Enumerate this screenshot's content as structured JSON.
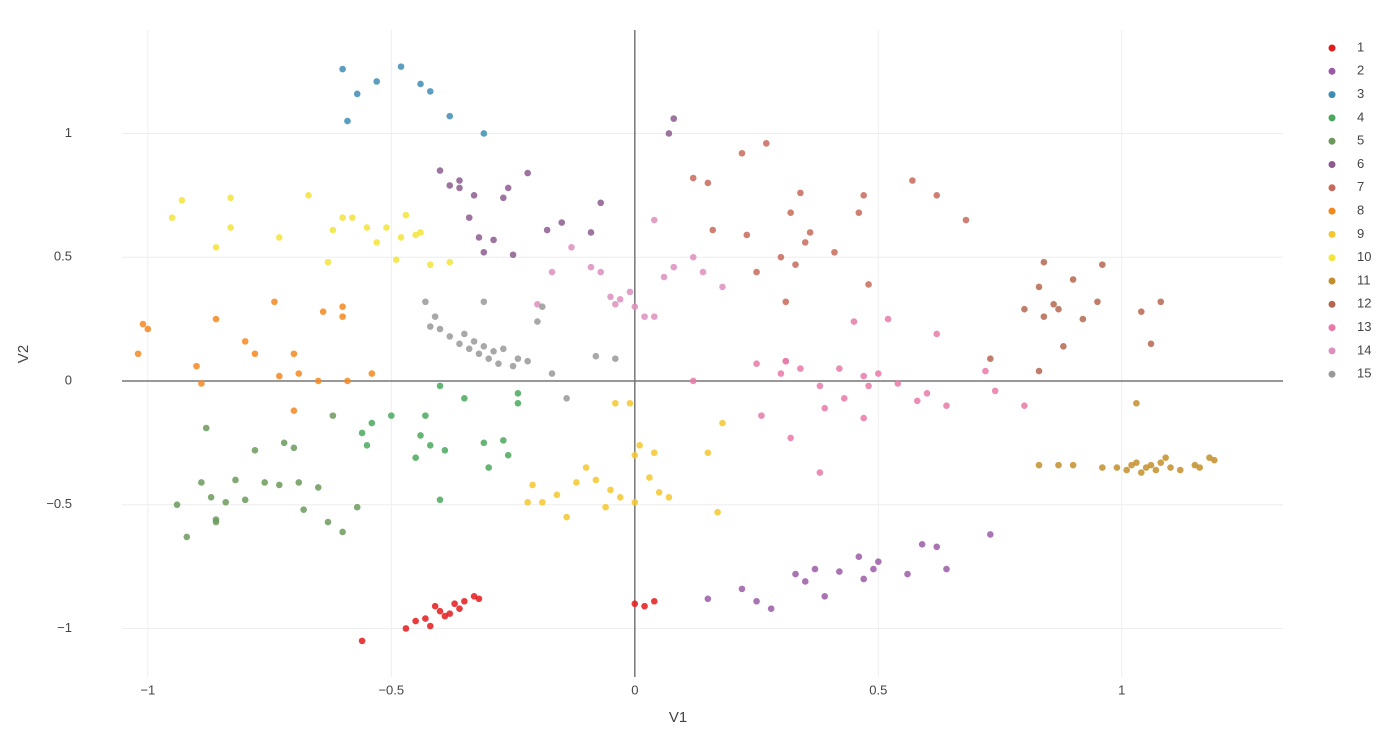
{
  "chart_data": {
    "type": "scatter",
    "x_label": "V1",
    "y_label": "V2",
    "xlim": [
      -1.053,
      1.331
    ],
    "ylim": [
      -1.196,
      1.418
    ],
    "xticks": [
      {
        "value": -1,
        "label": "−1"
      },
      {
        "value": -0.5,
        "label": "−0.5"
      },
      0,
      0.5,
      1
    ],
    "yticks": [
      {
        "value": -1,
        "label": "−1"
      },
      {
        "value": -0.5,
        "label": "−0.5"
      },
      0,
      0.5,
      1
    ],
    "grid": true,
    "legend": "right",
    "series": [
      {
        "name": "1",
        "color": "#e41a1c",
        "x": [
          -0.56,
          -0.47,
          -0.45,
          -0.43,
          -0.42,
          -0.4,
          -0.39,
          -0.37,
          -0.36,
          -0.35,
          -0.33,
          -0.32,
          -0.38,
          -0.41,
          0,
          0.02,
          0.04
        ],
        "values": [
          -1.05,
          -1,
          -0.97,
          -0.96,
          -0.99,
          -0.93,
          -0.95,
          -0.9,
          -0.92,
          -0.89,
          -0.87,
          -0.88,
          -0.94,
          -0.91,
          -0.9,
          -0.91,
          -0.89
        ]
      },
      {
        "name": "2",
        "color": "#9b5aa6",
        "x": [
          0.15,
          0.22,
          0.25,
          0.28,
          0.33,
          0.35,
          0.37,
          0.39,
          0.42,
          0.46,
          0.47,
          0.49,
          0.5,
          0.56,
          0.59,
          0.62,
          0.64,
          0.73
        ],
        "values": [
          -0.88,
          -0.84,
          -0.89,
          -0.92,
          -0.78,
          -0.81,
          -0.76,
          -0.87,
          -0.77,
          -0.71,
          -0.8,
          -0.76,
          -0.73,
          -0.78,
          -0.66,
          -0.67,
          -0.76,
          -0.62
        ]
      },
      {
        "name": "3",
        "color": "#3f8db5",
        "x": [
          -0.6,
          -0.59,
          -0.57,
          -0.53,
          -0.48,
          -0.44,
          -0.42,
          -0.38,
          -0.31
        ],
        "values": [
          1.26,
          1.05,
          1.16,
          1.21,
          1.27,
          1.2,
          1.17,
          1.07,
          1
        ]
      },
      {
        "name": "4",
        "color": "#4aa85c",
        "x": [
          -0.56,
          -0.55,
          -0.54,
          -0.5,
          -0.45,
          -0.44,
          -0.43,
          -0.42,
          -0.4,
          -0.39,
          -0.35,
          -0.31,
          -0.3,
          -0.27,
          -0.26,
          -0.24,
          -0.24,
          -0.4
        ],
        "values": [
          -0.21,
          -0.26,
          -0.17,
          -0.14,
          -0.31,
          -0.22,
          -0.14,
          -0.26,
          -0.02,
          -0.28,
          -0.07,
          -0.25,
          -0.35,
          -0.24,
          -0.3,
          -0.05,
          -0.09,
          -0.48
        ]
      },
      {
        "name": "5",
        "color": "#6b9a5c",
        "x": [
          -0.94,
          -0.92,
          -0.89,
          -0.87,
          -0.86,
          -0.84,
          -0.82,
          -0.8,
          -0.78,
          -0.76,
          -0.73,
          -0.72,
          -0.7,
          -0.69,
          -0.68,
          -0.65,
          -0.63,
          -0.62,
          -0.6,
          -0.57,
          -0.86,
          -0.88
        ],
        "values": [
          -0.5,
          -0.63,
          -0.41,
          -0.47,
          -0.56,
          -0.49,
          -0.4,
          -0.48,
          -0.28,
          -0.41,
          -0.42,
          -0.25,
          -0.27,
          -0.41,
          -0.52,
          -0.43,
          -0.57,
          -0.14,
          -0.61,
          -0.51,
          -0.57,
          -0.19
        ]
      },
      {
        "name": "6",
        "color": "#8c5a8e",
        "x": [
          -0.4,
          -0.38,
          -0.36,
          -0.34,
          -0.32,
          -0.31,
          -0.29,
          -0.27,
          -0.26,
          -0.25,
          -0.22,
          -0.18,
          -0.15,
          -0.07,
          -0.09,
          -0.33,
          -0.36,
          0.07,
          0.08
        ],
        "values": [
          0.85,
          0.79,
          0.81,
          0.66,
          0.58,
          0.52,
          0.57,
          0.74,
          0.78,
          0.51,
          0.84,
          0.61,
          0.64,
          0.72,
          0.6,
          0.75,
          0.78,
          1,
          1.06
        ]
      },
      {
        "name": "7",
        "color": "#c8685a",
        "x": [
          0.12,
          0.15,
          0.16,
          0.22,
          0.23,
          0.25,
          0.27,
          0.3,
          0.31,
          0.32,
          0.33,
          0.34,
          0.35,
          0.36,
          0.41,
          0.46,
          0.47,
          0.48,
          0.57,
          0.62,
          0.68
        ],
        "values": [
          0.82,
          0.8,
          0.61,
          0.92,
          0.59,
          0.44,
          0.96,
          0.5,
          0.32,
          0.68,
          0.47,
          0.76,
          0.56,
          0.6,
          0.52,
          0.68,
          0.75,
          0.39,
          0.81,
          0.75,
          0.65
        ]
      },
      {
        "name": "8",
        "color": "#f5871f",
        "x": [
          -1.02,
          -1.01,
          -1.0,
          -0.9,
          -0.89,
          -0.86,
          -0.8,
          -0.78,
          -0.74,
          -0.73,
          -0.7,
          -0.7,
          -0.69,
          -0.65,
          -0.64,
          -0.6,
          -0.6,
          -0.59,
          -0.54
        ],
        "values": [
          0.11,
          0.23,
          0.21,
          0.06,
          -0.01,
          0.25,
          0.16,
          0.11,
          0.32,
          0.02,
          0.11,
          -0.12,
          0.03,
          0,
          0.28,
          0.3,
          0.26,
          0,
          0.03
        ]
      },
      {
        "name": "9",
        "color": "#f5c72e",
        "x": [
          -0.22,
          -0.21,
          -0.19,
          -0.16,
          -0.14,
          -0.12,
          -0.1,
          -0.08,
          -0.06,
          -0.05,
          -0.03,
          -0.01,
          0,
          0.01,
          0.03,
          0.05,
          0.07,
          0.15,
          0.17,
          0.18,
          0.04,
          -0.04,
          0
        ],
        "values": [
          -0.49,
          -0.42,
          -0.49,
          -0.46,
          -0.55,
          -0.41,
          -0.35,
          -0.4,
          -0.51,
          -0.44,
          -0.47,
          -0.09,
          -0.3,
          -0.26,
          -0.39,
          -0.45,
          -0.47,
          -0.29,
          -0.53,
          -0.17,
          -0.29,
          -0.09,
          -0.49
        ]
      },
      {
        "name": "10",
        "color": "#f3e43a",
        "x": [
          -0.95,
          -0.93,
          -0.86,
          -0.83,
          -0.83,
          -0.73,
          -0.67,
          -0.63,
          -0.62,
          -0.6,
          -0.58,
          -0.55,
          -0.53,
          -0.51,
          -0.49,
          -0.48,
          -0.47,
          -0.45,
          -0.44,
          -0.42,
          -0.38
        ],
        "values": [
          0.66,
          0.73,
          0.54,
          0.74,
          0.62,
          0.58,
          0.75,
          0.48,
          0.61,
          0.66,
          0.66,
          0.62,
          0.56,
          0.62,
          0.49,
          0.58,
          0.67,
          0.59,
          0.6,
          0.47,
          0.48
        ]
      },
      {
        "name": "11",
        "color": "#c38f2c",
        "x": [
          0.83,
          0.87,
          0.9,
          0.96,
          0.99,
          1.01,
          1.02,
          1.03,
          1.04,
          1.05,
          1.06,
          1.07,
          1.08,
          1.09,
          1.1,
          1.12,
          1.15,
          1.16,
          1.18,
          1.19,
          1.03
        ],
        "values": [
          -0.34,
          -0.34,
          -0.34,
          -0.35,
          -0.35,
          -0.36,
          -0.34,
          -0.33,
          -0.37,
          -0.35,
          -0.34,
          -0.36,
          -0.33,
          -0.31,
          -0.35,
          -0.36,
          -0.34,
          -0.35,
          -0.31,
          -0.32,
          -0.09
        ]
      },
      {
        "name": "12",
        "color": "#b56650",
        "x": [
          0.8,
          0.83,
          0.84,
          0.84,
          0.86,
          0.87,
          0.88,
          0.9,
          0.92,
          0.95,
          0.96,
          1.04,
          1.06,
          1.08,
          0.73,
          0.83
        ],
        "values": [
          0.29,
          0.38,
          0.48,
          0.26,
          0.31,
          0.29,
          0.14,
          0.41,
          0.25,
          0.32,
          0.47,
          0.28,
          0.15,
          0.32,
          0.09,
          0.04
        ]
      },
      {
        "name": "13",
        "color": "#e879a8",
        "x": [
          0.25,
          0.26,
          0.3,
          0.31,
          0.32,
          0.34,
          0.38,
          0.39,
          0.42,
          0.43,
          0.45,
          0.47,
          0.48,
          0.5,
          0.52,
          0.54,
          0.58,
          0.6,
          0.62,
          0.64,
          0.72,
          0.74,
          0.8,
          0.38,
          0.31,
          0.47,
          0.12
        ],
        "values": [
          0.07,
          -0.14,
          0.03,
          0.08,
          -0.23,
          0.05,
          -0.37,
          -0.11,
          0.05,
          -0.07,
          0.24,
          -0.15,
          -0.02,
          0.03,
          0.25,
          -0.01,
          -0.08,
          -0.05,
          0.19,
          -0.1,
          0.04,
          -0.04,
          -0.1,
          -0.02,
          0.08,
          0.02,
          0
        ]
      },
      {
        "name": "14",
        "color": "#dd8fc0",
        "x": [
          -0.2,
          -0.17,
          -0.13,
          -0.09,
          -0.07,
          -0.05,
          -0.04,
          -0.03,
          -0.01,
          0,
          0.02,
          0.04,
          0.06,
          0.08,
          0.12,
          0.14,
          0.18,
          0.04
        ],
        "values": [
          0.31,
          0.44,
          0.54,
          0.46,
          0.44,
          0.34,
          0.31,
          0.33,
          0.36,
          0.3,
          0.26,
          0.65,
          0.42,
          0.46,
          0.5,
          0.44,
          0.38,
          0.26
        ]
      },
      {
        "name": "15",
        "color": "#999999",
        "x": [
          -0.43,
          -0.42,
          -0.41,
          -0.4,
          -0.38,
          -0.36,
          -0.35,
          -0.34,
          -0.33,
          -0.32,
          -0.31,
          -0.3,
          -0.29,
          -0.28,
          -0.27,
          -0.25,
          -0.24,
          -0.22,
          -0.2,
          -0.17,
          -0.14,
          -0.08,
          -0.04,
          -0.31,
          -0.19
        ],
        "values": [
          0.32,
          0.22,
          0.26,
          0.21,
          0.18,
          0.15,
          0.19,
          0.13,
          0.16,
          0.11,
          0.14,
          0.09,
          0.12,
          0.07,
          0.13,
          0.06,
          0.09,
          0.08,
          0.24,
          0.03,
          -0.07,
          0.1,
          0.09,
          0.32,
          0.3
        ]
      }
    ]
  }
}
